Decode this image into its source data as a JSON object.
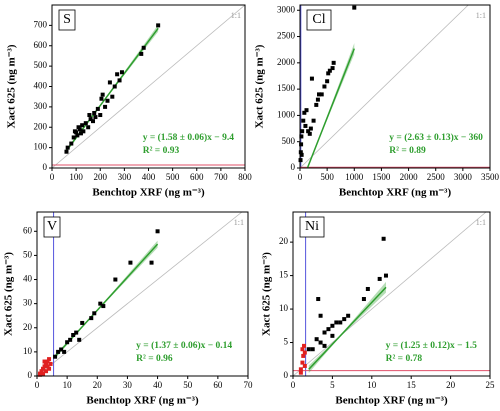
{
  "chart_data": [
    {
      "type": "scatter",
      "label": "S",
      "xlabel": "Benchtop XRF (ng m⁻³)",
      "ylabel": "Xact 625 (ng m⁻³)",
      "xlim": [
        0,
        800
      ],
      "ylim": [
        0,
        800
      ],
      "xticks": [
        0,
        100,
        200,
        300,
        400,
        500,
        600,
        700,
        800
      ],
      "yticks": [
        0,
        100,
        200,
        300,
        400,
        500,
        600,
        700
      ],
      "one_to_one": "1:1",
      "equation": "y = (1.58 ± 0.06)x − 9.4",
      "r2": "R² = 0.93",
      "fit": {
        "slope": 1.58,
        "slope_err": 0.06,
        "intercept": -9.4,
        "color": "#2e9e2e"
      },
      "mdl_y": 15,
      "mdl_y_color": "#e0506a",
      "series": [
        {
          "color": "#000000",
          "x": [
            60,
            65,
            80,
            90,
            95,
            100,
            105,
            110,
            115,
            120,
            125,
            130,
            140,
            150,
            155,
            160,
            170,
            175,
            180,
            190,
            200,
            205,
            210,
            220,
            230,
            240,
            250,
            260,
            270,
            280,
            290,
            370,
            380,
            440
          ],
          "values": [
            80,
            100,
            120,
            150,
            180,
            175,
            160,
            200,
            190,
            170,
            210,
            180,
            220,
            200,
            260,
            240,
            230,
            270,
            250,
            290,
            260,
            340,
            360,
            300,
            330,
            420,
            350,
            400,
            460,
            430,
            470,
            560,
            590,
            700
          ]
        }
      ]
    },
    {
      "type": "scatter",
      "label": "Cl",
      "xlabel": "Benchtop XRF (ng m⁻³)",
      "ylabel": "Xact 625 (ng m⁻³)",
      "xlim": [
        0,
        3500
      ],
      "ylim": [
        0,
        3100
      ],
      "xticks": [
        0,
        500,
        1000,
        1500,
        2000,
        2500,
        3000,
        3500
      ],
      "yticks": [
        0,
        500,
        1000,
        1500,
        2000,
        2500,
        3000
      ],
      "one_to_one": "1:1",
      "equation": "y = (2.63 ± 0.13)x − 360",
      "r2": "R² = 0.89",
      "fit": {
        "slope": 2.63,
        "slope_err": 0.13,
        "intercept": -360,
        "color": "#2e9e2e"
      },
      "mdl_x": 15,
      "mdl_x_color": "#5555dd",
      "mdl_y": 15,
      "mdl_y_color": "#e0506a",
      "series": [
        {
          "color": "#000000",
          "x": [
            10,
            15,
            20,
            25,
            30,
            40,
            60,
            80,
            100,
            120,
            150,
            180,
            200,
            220,
            250,
            300,
            330,
            350,
            400,
            450,
            500,
            520,
            550,
            600,
            620,
            1000
          ],
          "values": [
            150,
            300,
            450,
            600,
            250,
            700,
            900,
            1050,
            800,
            1100,
            700,
            650,
            750,
            1700,
            900,
            1200,
            1300,
            1400,
            1400,
            1550,
            1650,
            1800,
            1850,
            1900,
            2000,
            3050
          ]
        }
      ]
    },
    {
      "type": "scatter",
      "label": "V",
      "xlabel": "Benchtop XRF (ng m⁻³)",
      "ylabel": "Xact 625 (ng m⁻³)",
      "xlim": [
        0,
        70
      ],
      "ylim": [
        0,
        68
      ],
      "xticks": [
        0,
        10,
        20,
        30,
        40,
        50,
        60,
        70
      ],
      "yticks": [
        0,
        10,
        20,
        30,
        40,
        50,
        60
      ],
      "one_to_one": "1:1",
      "equation": "y = (1.37 ± 0.06)x − 0.14",
      "r2": "R² = 0.96",
      "fit": {
        "slope": 1.37,
        "slope_err": 0.06,
        "intercept": -0.14,
        "color": "#2e9e2e"
      },
      "mdl_x": 5.5,
      "mdl_x_color": "#5555dd",
      "series": [
        {
          "color": "#000000",
          "x": [
            6,
            7,
            8,
            9,
            10,
            11,
            12,
            13,
            14,
            15,
            18,
            19,
            21,
            22,
            26,
            31,
            38,
            40
          ],
          "values": [
            8,
            10,
            11,
            10,
            14,
            15,
            17,
            18,
            15,
            22,
            24,
            26,
            30,
            29,
            40,
            47,
            47,
            60
          ]
        },
        {
          "color": "#e02020",
          "x": [
            1,
            1.5,
            2,
            2.5,
            3,
            3.5,
            2,
            3,
            4,
            4,
            1,
            2.5,
            3.5,
            4.5
          ],
          "values": [
            1,
            2,
            3,
            4,
            5,
            6,
            1,
            2,
            7,
            3,
            0.5,
            6,
            4,
            5
          ]
        }
      ]
    },
    {
      "type": "scatter",
      "label": "Ni",
      "xlabel": "Benchtop XRF (ng m⁻³)",
      "ylabel": "Xact 625 (ng m⁻³)",
      "xlim": [
        0,
        25
      ],
      "ylim": [
        0,
        24.5
      ],
      "xticks": [
        0,
        5,
        10,
        15,
        20,
        25
      ],
      "yticks": [
        0,
        5,
        10,
        15,
        20
      ],
      "one_to_one": "1:1",
      "equation": "y = (1.25 ± 0.12)x − 1.5",
      "r2": "R² = 0.78",
      "fit": {
        "slope": 1.25,
        "slope_err": 0.12,
        "intercept": -1.5,
        "color": "#2e9e2e"
      },
      "mdl_x": 1.6,
      "mdl_x_color": "#5555dd",
      "mdl_y": 0.8,
      "mdl_y_color": "#e0506a",
      "series": [
        {
          "color": "#000000",
          "x": [
            2,
            2.5,
            3,
            3.2,
            3.5,
            3.5,
            4,
            4,
            4.5,
            5,
            5,
            5.5,
            6,
            6.5,
            7,
            9,
            9.5,
            11,
            11.5,
            11.8
          ],
          "values": [
            4,
            4,
            5.5,
            11.5,
            9,
            5,
            6.5,
            4.5,
            7,
            7.5,
            6,
            8,
            8,
            8.5,
            9,
            11.5,
            13,
            14.5,
            20.5,
            15
          ]
        },
        {
          "color": "#e02020",
          "x": [
            1,
            1.2,
            1.3,
            1.4,
            1.5,
            1,
            1.5,
            1.2
          ],
          "values": [
            1,
            2,
            3,
            4.5,
            3.5,
            0.5,
            1.5,
            4
          ]
        }
      ]
    }
  ]
}
